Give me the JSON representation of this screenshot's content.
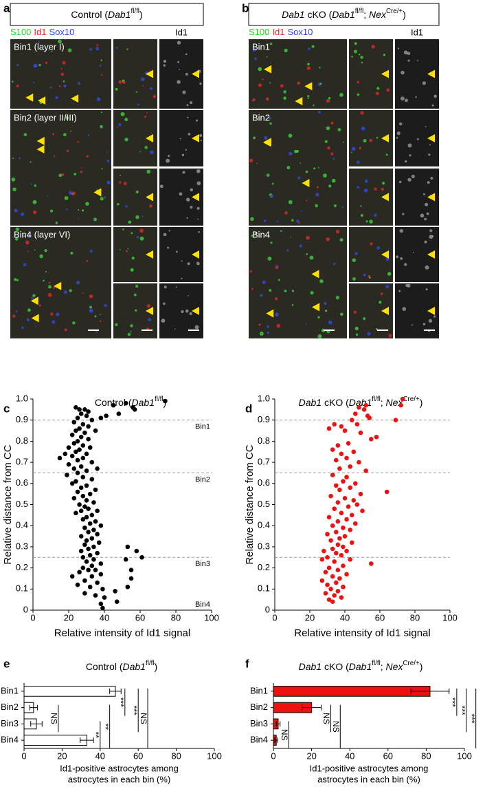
{
  "panels": {
    "a": {
      "label": "a",
      "title": [
        {
          "text": "Control ("
        },
        {
          "text": "Dab1",
          "italic": true
        },
        {
          "text": "fl/fl",
          "sup": true
        },
        {
          "text": ")"
        }
      ],
      "stains": [
        {
          "text": "S100",
          "color": "#22d422"
        },
        {
          "text": "Id1",
          "color": "#ff2020"
        },
        {
          "text": "Sox10",
          "color": "#2a3cff"
        }
      ],
      "channel": "Id1",
      "bins": [
        "Bin1 (layer I)",
        "Bin2 (layer II/III)",
        "Bin4 (layer VI)"
      ]
    },
    "b": {
      "label": "b",
      "title": [
        {
          "text": "Dab1",
          "italic": true
        },
        {
          "text": " cKO ("
        },
        {
          "text": "Dab1",
          "italic": true
        },
        {
          "text": "fl/fl",
          "sup": true
        },
        {
          "text": "; "
        },
        {
          "text": "Nex",
          "italic": true
        },
        {
          "text": "Cre/+",
          "sup": true
        },
        {
          "text": ")"
        }
      ],
      "stains": [
        {
          "text": "S100",
          "color": "#22d422"
        },
        {
          "text": "Id1",
          "color": "#ff2020"
        },
        {
          "text": "Sox10",
          "color": "#2a3cff"
        }
      ],
      "channel": "Id1",
      "bins": [
        "Bin1",
        "Bin2",
        "Bin4"
      ]
    }
  },
  "chart_data": [
    {
      "type": "scatter",
      "panel_label": "c",
      "title": [
        {
          "text": "Control ("
        },
        {
          "text": "Dab1",
          "italic": true
        },
        {
          "text": "fl/fl",
          "sup": true
        },
        {
          "text": ")"
        }
      ],
      "xlabel": "Relative intensity of Id1 signal",
      "ylabel": "Relative distance from CC",
      "color": "#000000",
      "xlim": [
        0,
        100
      ],
      "ylim": [
        0,
        1
      ],
      "xticks": [
        0,
        20,
        40,
        60,
        80,
        100
      ],
      "yticks": [
        0,
        0.1,
        0.2,
        0.3,
        0.4,
        0.5,
        0.6,
        0.7,
        0.8,
        0.9,
        {
          "value": 1,
          "label": "1.0"
        }
      ],
      "ref_lines": [
        0.9,
        0.65,
        0.25
      ],
      "ref_labels": [
        "Bin1",
        "Bin2",
        "Bin3",
        "Bin4"
      ],
      "x": [
        74,
        52,
        45,
        56,
        57,
        48,
        41,
        38,
        24,
        26,
        29,
        31,
        27,
        30,
        25,
        33,
        23,
        28,
        31,
        26,
        24,
        29,
        35,
        22,
        27,
        31,
        25,
        23,
        28,
        32,
        20,
        26,
        24,
        30,
        18,
        22,
        28,
        15,
        25,
        33,
        20,
        27,
        23,
        36,
        30,
        25,
        19,
        28,
        33,
        24,
        22,
        30,
        27,
        35,
        25,
        32,
        28,
        23,
        30,
        34,
        26,
        29,
        31,
        27,
        36,
        24,
        33,
        30,
        28,
        35,
        32,
        38,
        29,
        34,
        31,
        36,
        27,
        33,
        30,
        37,
        29,
        34,
        53,
        58,
        31,
        27,
        36,
        32,
        61,
        28,
        34,
        52,
        30,
        38,
        33,
        28,
        35,
        31,
        55,
        26,
        38,
        33,
        22,
        55,
        29,
        36,
        25,
        32,
        53,
        39,
        46,
        29,
        35,
        40,
        47,
        38,
        39
      ],
      "values": [
        0.99,
        0.98,
        0.97,
        0.96,
        0.95,
        0.93,
        0.92,
        0.91,
        0.96,
        0.95,
        0.95,
        0.94,
        0.93,
        0.92,
        0.91,
        0.9,
        0.89,
        0.88,
        0.87,
        0.86,
        0.85,
        0.84,
        0.85,
        0.83,
        0.82,
        0.81,
        0.8,
        0.79,
        0.78,
        0.77,
        0.77,
        0.76,
        0.75,
        0.74,
        0.74,
        0.73,
        0.72,
        0.72,
        0.71,
        0.7,
        0.69,
        0.68,
        0.67,
        0.67,
        0.66,
        0.65,
        0.64,
        0.63,
        0.62,
        0.61,
        0.6,
        0.59,
        0.58,
        0.57,
        0.56,
        0.55,
        0.54,
        0.53,
        0.52,
        0.51,
        0.5,
        0.49,
        0.48,
        0.47,
        0.47,
        0.46,
        0.45,
        0.44,
        0.43,
        0.42,
        0.41,
        0.4,
        0.39,
        0.38,
        0.37,
        0.36,
        0.35,
        0.34,
        0.33,
        0.32,
        0.31,
        0.3,
        0.3,
        0.28,
        0.29,
        0.28,
        0.27,
        0.26,
        0.25,
        0.25,
        0.24,
        0.24,
        0.23,
        0.22,
        0.21,
        0.2,
        0.19,
        0.19,
        0.19,
        0.18,
        0.17,
        0.16,
        0.16,
        0.15,
        0.14,
        0.13,
        0.12,
        0.11,
        0.11,
        0.1,
        0.09,
        0.08,
        0.07,
        0.06,
        0.04,
        0.03,
        0.01
      ]
    },
    {
      "type": "scatter",
      "panel_label": "d",
      "title": [
        {
          "text": "Dab1",
          "italic": true
        },
        {
          "text": " cKO ("
        },
        {
          "text": "Dab1",
          "italic": true
        },
        {
          "text": "fl/fl",
          "sup": true
        },
        {
          "text": "; "
        },
        {
          "text": "Nex",
          "italic": true
        },
        {
          "text": "Cre/+",
          "sup": true
        },
        {
          "text": ")"
        }
      ],
      "xlabel": "Relative intensity of Id1 signal",
      "ylabel": "Relative distance from CC",
      "color": "#ee1111",
      "xlim": [
        0,
        100
      ],
      "ylim": [
        0,
        1
      ],
      "xticks": [
        0,
        20,
        40,
        60,
        80,
        100
      ],
      "yticks": [
        0,
        0.1,
        0.2,
        0.3,
        0.4,
        0.5,
        0.6,
        0.7,
        0.8,
        0.9,
        {
          "value": 1,
          "label": "1.0"
        }
      ],
      "ref_lines": [
        0.9,
        0.65,
        0.25
      ],
      "x": [
        73,
        72,
        52,
        48,
        51,
        46,
        53,
        54,
        69,
        44,
        34,
        47,
        38,
        31,
        40,
        49,
        58,
        55,
        42,
        36,
        33,
        45,
        38,
        41,
        35,
        48,
        43,
        37,
        52,
        33,
        41,
        39,
        46,
        35,
        43,
        64,
        37,
        49,
        32,
        40,
        45,
        36,
        47,
        42,
        34,
        50,
        38,
        44,
        31,
        41,
        36,
        46,
        33,
        39,
        43,
        35,
        30,
        40,
        37,
        32,
        44,
        36,
        39,
        33,
        28,
        41,
        35,
        38,
        30,
        43,
        27,
        55,
        34,
        39,
        31,
        36,
        29,
        41,
        33,
        37,
        27,
        35,
        30,
        39,
        32,
        36,
        29,
        34,
        38,
        31,
        33
      ],
      "values": [
        1,
        0.97,
        0.97,
        0.96,
        0.95,
        0.93,
        0.92,
        0.91,
        0.9,
        0.9,
        0.88,
        0.88,
        0.87,
        0.86,
        0.85,
        0.84,
        0.82,
        0.81,
        0.79,
        0.78,
        0.76,
        0.75,
        0.74,
        0.72,
        0.71,
        0.7,
        0.68,
        0.67,
        0.66,
        0.64,
        0.63,
        0.61,
        0.6,
        0.59,
        0.58,
        0.56,
        0.57,
        0.55,
        0.54,
        0.53,
        0.52,
        0.51,
        0.5,
        0.49,
        0.48,
        0.47,
        0.46,
        0.45,
        0.44,
        0.43,
        0.42,
        0.41,
        0.4,
        0.39,
        0.38,
        0.37,
        0.36,
        0.35,
        0.34,
        0.33,
        0.32,
        0.31,
        0.3,
        0.29,
        0.28,
        0.28,
        0.27,
        0.26,
        0.25,
        0.24,
        0.24,
        0.22,
        0.23,
        0.21,
        0.2,
        0.19,
        0.18,
        0.17,
        0.16,
        0.15,
        0.14,
        0.13,
        0.12,
        0.11,
        0.1,
        0.09,
        0.08,
        0.07,
        0.06,
        0.05,
        0.04
      ]
    },
    {
      "type": "bar",
      "panel_label": "e",
      "title": [
        {
          "text": "Control ("
        },
        {
          "text": "Dab1",
          "italic": true
        },
        {
          "text": "fl/fl",
          "sup": true
        },
        {
          "text": ")"
        }
      ],
      "xlabel": [
        "Id1-positive astrocytes among",
        "astrocytes in each bin (%)"
      ],
      "color": "#ffffff",
      "categories": [
        "Bin1",
        "Bin2",
        "Bin3",
        "Bin4"
      ],
      "values": [
        48,
        5,
        6.5,
        33
      ],
      "error": [
        3,
        2,
        3,
        3.5
      ],
      "xlim": [
        0,
        100
      ],
      "xticks": [
        0,
        20,
        40,
        60,
        80,
        100
      ],
      "comparisons": [
        {
          "label": "***",
          "pair": [
            "Bin1",
            "Bin2"
          ]
        },
        {
          "label": "***",
          "pair": [
            "Bin1",
            "Bin3"
          ]
        },
        {
          "label": "NS",
          "pair": [
            "Bin1",
            "Bin4"
          ]
        },
        {
          "label": "NS",
          "pair": [
            "Bin2",
            "Bin3"
          ]
        },
        {
          "label": "**",
          "pair": [
            "Bin3",
            "Bin4"
          ]
        },
        {
          "label": "**",
          "pair": [
            "Bin2",
            "Bin4"
          ]
        }
      ]
    },
    {
      "type": "bar",
      "panel_label": "f",
      "title": [
        {
          "text": "Dab1",
          "italic": true
        },
        {
          "text": " cKO ("
        },
        {
          "text": "Dab1",
          "italic": true
        },
        {
          "text": "fl/fl",
          "sup": true
        },
        {
          "text": "; "
        },
        {
          "text": "Nex",
          "italic": true
        },
        {
          "text": "Cre/+",
          "sup": true
        },
        {
          "text": ")"
        }
      ],
      "xlabel": [
        "Id1-positive astrocytes among",
        "astrocytes in each bin (%)"
      ],
      "color": "#ee1111",
      "categories": [
        "Bin1",
        "Bin2",
        "Bin3",
        "Bin4"
      ],
      "values": [
        82,
        20,
        2.5,
        1.5
      ],
      "error": [
        10,
        5,
        1,
        0.8
      ],
      "xlim": [
        0,
        100
      ],
      "xticks": [
        0,
        20,
        40,
        60,
        80,
        100
      ],
      "comparisons": [
        {
          "label": "***",
          "pair": [
            "Bin1",
            "Bin2"
          ]
        },
        {
          "label": "***",
          "pair": [
            "Bin1",
            "Bin3"
          ]
        },
        {
          "label": "***",
          "pair": [
            "Bin1",
            "Bin4"
          ]
        },
        {
          "label": "NS",
          "pair": [
            "Bin2",
            "Bin3"
          ]
        },
        {
          "label": "NS",
          "pair": [
            "Bin2",
            "Bin4"
          ]
        },
        {
          "label": "NS",
          "pair": [
            "Bin3",
            "Bin4"
          ]
        }
      ]
    }
  ]
}
